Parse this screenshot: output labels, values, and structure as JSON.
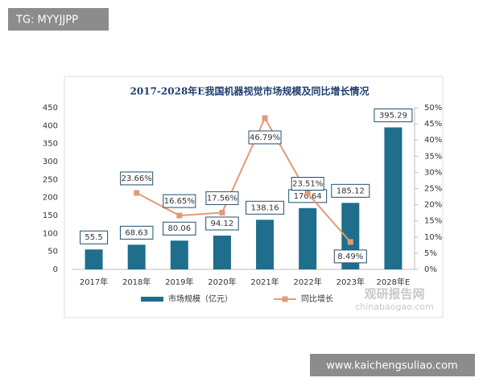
{
  "header_tag": "TG: MYYJJPP",
  "footer_url": "www.kaichengsuliao.com",
  "watermark": {
    "name": "观研报告网",
    "url": "chinabaogao.com"
  },
  "chart_data": {
    "type": "bar",
    "title": "2017-2028年E我国机器视觉市场规模及同比增长情况",
    "categories": [
      "2017年",
      "2018年",
      "2019年",
      "2020年",
      "2021年",
      "2022年",
      "2023年",
      "2028年E"
    ],
    "series": [
      {
        "name": "市场规模（亿元）",
        "type": "bar",
        "color": "#1f6e8c",
        "values": [
          55.5,
          68.63,
          80.06,
          94.12,
          138.16,
          170.64,
          185.12,
          395.29
        ]
      },
      {
        "name": "同比增长",
        "type": "line",
        "axis": "y2",
        "color": "#e29a76",
        "values": [
          null,
          23.66,
          16.65,
          17.56,
          46.79,
          23.51,
          8.49,
          null
        ],
        "value_labels": [
          null,
          "23.66%",
          "16.65%",
          "17.56%",
          "46.79%",
          "23.51%",
          "8.49%",
          null
        ]
      }
    ],
    "ylim": [
      0,
      450
    ],
    "yticks": [
      0,
      50,
      100,
      150,
      200,
      250,
      300,
      350,
      400,
      450
    ],
    "y2lim": [
      0,
      50
    ],
    "y2ticks": [
      {
        "value": 0,
        "label": "0%"
      },
      {
        "value": 5,
        "label": "5%"
      },
      {
        "value": 10,
        "label": "10%"
      },
      {
        "value": 15,
        "label": "15%"
      },
      {
        "value": 20,
        "label": "20%"
      },
      {
        "value": 25,
        "label": "25%"
      },
      {
        "value": 30,
        "label": "30%"
      },
      {
        "value": 35,
        "label": "35%"
      },
      {
        "value": 40,
        "label": "40%"
      },
      {
        "value": 45,
        "label": "45%"
      },
      {
        "value": 50,
        "label": "50%"
      }
    ],
    "legend": "bottom"
  }
}
